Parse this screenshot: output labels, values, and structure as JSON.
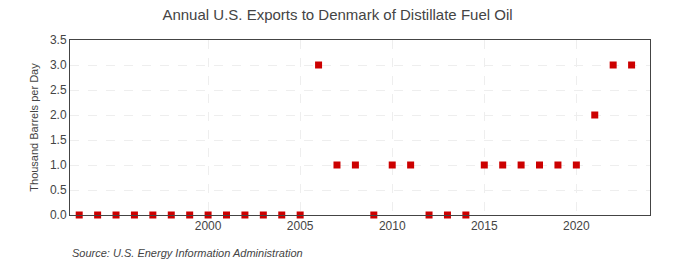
{
  "chart_data": {
    "type": "scatter",
    "title": "Annual U.S. Exports to Denmark of Distillate Fuel Oil",
    "ylabel": "Thousand Barrels per Day",
    "annotations": [
      "Source: U.S. Energy Information Administration"
    ],
    "x": [
      1993,
      1994,
      1995,
      1996,
      1997,
      1998,
      1999,
      2000,
      2001,
      2002,
      2003,
      2004,
      2005,
      2006,
      2007,
      2008,
      2009,
      2010,
      2011,
      2012,
      2013,
      2014,
      2015,
      2016,
      2017,
      2018,
      2019,
      2020,
      2021,
      2022,
      2023
    ],
    "values": [
      0.0,
      0.0,
      0.0,
      0.0,
      0.0,
      0.0,
      0.0,
      0.0,
      0.0,
      0.0,
      0.0,
      0.0,
      0.0,
      3.0,
      1.0,
      1.0,
      0.0,
      1.0,
      1.0,
      0.0,
      0.0,
      0.0,
      1.0,
      1.0,
      1.0,
      1.0,
      1.0,
      1.0,
      2.0,
      3.0,
      3.0
    ],
    "color": "#cc0000",
    "marker": "square",
    "xlim": [
      1992.5,
      2024
    ],
    "xticks": [
      2000,
      2005,
      2010,
      2015,
      2020
    ],
    "ylim": [
      0,
      3.5
    ],
    "yticks": [
      {
        "value": 0.0,
        "label": "0.0"
      },
      0.5,
      {
        "value": 1.0,
        "label": "1.0"
      },
      1.5,
      {
        "value": 2.0,
        "label": "2.0"
      },
      2.5,
      {
        "value": 3.0,
        "label": "3.0"
      },
      3.5
    ],
    "grid": true
  }
}
